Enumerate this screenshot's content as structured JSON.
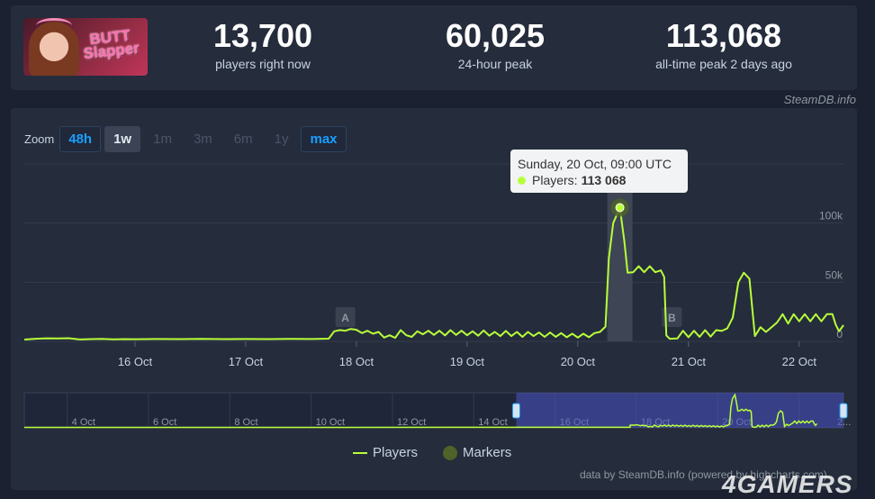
{
  "header": {
    "game_logo_text": "BUTT Slapper",
    "stats": [
      {
        "value": "13,700",
        "label": "players right now"
      },
      {
        "value": "60,025",
        "label": "24-hour peak"
      },
      {
        "value": "113,068",
        "label": "all-time peak 2 days ago"
      }
    ],
    "source_credit": "SteamDB.info"
  },
  "zoom": {
    "label": "Zoom",
    "options": [
      "48h",
      "1w",
      "1m",
      "3m",
      "6m",
      "1y",
      "max"
    ],
    "selected": "1w"
  },
  "tooltip": {
    "date": "Sunday, 20 Oct, 09:00 UTC",
    "series": "Players:",
    "value": "113 068"
  },
  "legend": {
    "players": "Players",
    "markers": "Markers"
  },
  "footer": {
    "credit": "data by SteamDB.info (powered by highcharts.com)",
    "watermark": "4GAMERS"
  },
  "colors": {
    "line": "#b7ff3a",
    "marker": "#4f6229",
    "accent": "#1a9fff"
  },
  "chart_data": {
    "type": "line",
    "series": [
      {
        "name": "Players"
      }
    ],
    "ylabel": "",
    "y_ticks": [
      "0",
      "50k",
      "100k"
    ],
    "ylim": [
      0,
      150000
    ],
    "x_tick_labels": [
      "16 Oct",
      "17 Oct",
      "18 Oct",
      "19 Oct",
      "20 Oct",
      "21 Oct",
      "22 Oct"
    ],
    "x_tick_days": [
      16,
      17,
      18,
      19,
      20,
      21,
      22
    ],
    "xlim_days": [
      15.0,
      22.4
    ],
    "markers": [
      {
        "label": "A",
        "day": 17.9
      },
      {
        "label": "B",
        "day": 20.85
      }
    ],
    "points": [
      [
        15.0,
        1500
      ],
      [
        15.1,
        2200
      ],
      [
        15.2,
        2600
      ],
      [
        15.3,
        2400
      ],
      [
        15.4,
        2700
      ],
      [
        15.5,
        1600
      ],
      [
        15.6,
        1900
      ],
      [
        15.7,
        2100
      ],
      [
        15.8,
        1700
      ],
      [
        15.9,
        1900
      ],
      [
        16.0,
        1800
      ],
      [
        16.2,
        2000
      ],
      [
        16.4,
        1900
      ],
      [
        16.6,
        2100
      ],
      [
        16.8,
        1900
      ],
      [
        17.0,
        2000
      ],
      [
        17.2,
        1900
      ],
      [
        17.4,
        2100
      ],
      [
        17.6,
        2000
      ],
      [
        17.75,
        2300
      ],
      [
        17.8,
        8500
      ],
      [
        17.85,
        9500
      ],
      [
        17.9,
        9000
      ],
      [
        17.95,
        10500
      ],
      [
        18.0,
        9800
      ],
      [
        18.05,
        7000
      ],
      [
        18.1,
        9000
      ],
      [
        18.15,
        6500
      ],
      [
        18.2,
        8000
      ],
      [
        18.25,
        3200
      ],
      [
        18.3,
        5200
      ],
      [
        18.35,
        3000
      ],
      [
        18.4,
        9500
      ],
      [
        18.45,
        5200
      ],
      [
        18.5,
        3800
      ],
      [
        18.55,
        8500
      ],
      [
        18.6,
        6000
      ],
      [
        18.65,
        9000
      ],
      [
        18.7,
        5500
      ],
      [
        18.75,
        9000
      ],
      [
        18.8,
        5000
      ],
      [
        18.85,
        9500
      ],
      [
        18.9,
        5500
      ],
      [
        18.95,
        9000
      ],
      [
        19.0,
        5200
      ],
      [
        19.05,
        8500
      ],
      [
        19.1,
        4800
      ],
      [
        19.15,
        9200
      ],
      [
        19.2,
        4800
      ],
      [
        19.25,
        8000
      ],
      [
        19.3,
        4500
      ],
      [
        19.35,
        8800
      ],
      [
        19.4,
        4500
      ],
      [
        19.45,
        8000
      ],
      [
        19.5,
        3800
      ],
      [
        19.55,
        8000
      ],
      [
        19.6,
        4500
      ],
      [
        19.65,
        7500
      ],
      [
        19.7,
        3800
      ],
      [
        19.75,
        7500
      ],
      [
        19.8,
        3800
      ],
      [
        19.85,
        7000
      ],
      [
        19.9,
        3500
      ],
      [
        19.95,
        6500
      ],
      [
        20.0,
        3200
      ],
      [
        20.05,
        6500
      ],
      [
        20.1,
        3500
      ],
      [
        20.15,
        7000
      ],
      [
        20.2,
        8000
      ],
      [
        20.25,
        12500
      ],
      [
        20.28,
        70000
      ],
      [
        20.32,
        100000
      ],
      [
        20.38,
        113068
      ],
      [
        20.42,
        85000
      ],
      [
        20.45,
        58000
      ],
      [
        20.5,
        58500
      ],
      [
        20.55,
        63500
      ],
      [
        20.6,
        58500
      ],
      [
        20.65,
        63500
      ],
      [
        20.7,
        58500
      ],
      [
        20.75,
        60025
      ],
      [
        20.78,
        54500
      ],
      [
        20.8,
        5000
      ],
      [
        20.83,
        2200
      ],
      [
        20.9,
        2400
      ],
      [
        20.95,
        9000
      ],
      [
        21.0,
        3500
      ],
      [
        21.05,
        9000
      ],
      [
        21.1,
        3800
      ],
      [
        21.15,
        9500
      ],
      [
        21.2,
        4000
      ],
      [
        21.25,
        9500
      ],
      [
        21.3,
        8800
      ],
      [
        21.35,
        11000
      ],
      [
        21.4,
        20000
      ],
      [
        21.45,
        50000
      ],
      [
        21.5,
        58000
      ],
      [
        21.55,
        53000
      ],
      [
        21.6,
        4500
      ],
      [
        21.65,
        12000
      ],
      [
        21.7,
        8000
      ],
      [
        21.75,
        12000
      ],
      [
        21.8,
        16000
      ],
      [
        21.85,
        23000
      ],
      [
        21.9,
        15000
      ],
      [
        21.95,
        23000
      ],
      [
        22.0,
        17000
      ],
      [
        22.05,
        23000
      ],
      [
        22.1,
        17000
      ],
      [
        22.15,
        23000
      ],
      [
        22.2,
        17000
      ],
      [
        22.25,
        23000
      ],
      [
        22.3,
        23000
      ],
      [
        22.33,
        14000
      ],
      [
        22.36,
        8500
      ],
      [
        22.4,
        13700
      ]
    ]
  },
  "navigator": {
    "date_labels": [
      "4 Oct",
      "6 Oct",
      "8 Oct",
      "10 Oct",
      "12 Oct",
      "14 Oct",
      "16 Oct",
      "18 Oct",
      "20 Oct",
      "2..."
    ],
    "range_start_day": 2.9,
    "range_end_day": 23.05,
    "selected_from_day": 15.0,
    "selected_to_day": 23.05
  }
}
